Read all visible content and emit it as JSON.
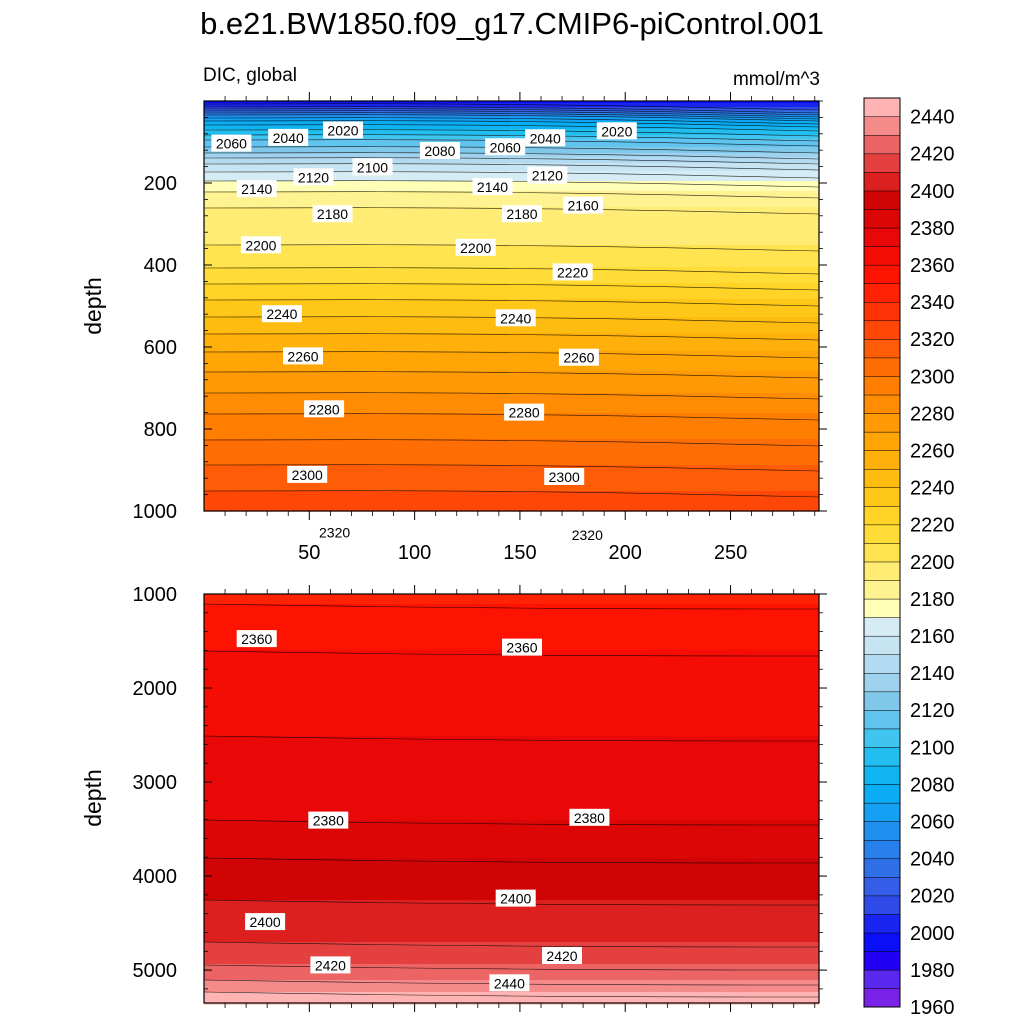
{
  "title": "b.e21.BW1850.f09_g17.CMIP6-piControl.001",
  "chart_data": {
    "type": "contour",
    "variable": "DIC, global",
    "units": "mmol/m^3",
    "xlim": [
      0,
      292
    ],
    "x_ticks": [
      50,
      100,
      150,
      200,
      250
    ],
    "x_tick_labels": [
      "50",
      "100",
      "150",
      "200",
      "250"
    ],
    "colorbar": {
      "levels": [
        1960,
        1970,
        1980,
        1990,
        2000,
        2010,
        2020,
        2030,
        2040,
        2050,
        2060,
        2070,
        2080,
        2090,
        2100,
        2110,
        2120,
        2130,
        2140,
        2150,
        2160,
        2170,
        2180,
        2190,
        2200,
        2210,
        2220,
        2230,
        2240,
        2250,
        2260,
        2270,
        2280,
        2290,
        2300,
        2310,
        2320,
        2330,
        2340,
        2350,
        2360,
        2370,
        2380,
        2390,
        2400,
        2410,
        2420,
        2430,
        2440,
        2450
      ],
      "labels": [
        "1960",
        "1980",
        "2000",
        "2020",
        "2040",
        "2060",
        "2080",
        "2100",
        "2120",
        "2140",
        "2160",
        "2180",
        "2200",
        "2220",
        "2240",
        "2260",
        "2280",
        "2300",
        "2320",
        "2340",
        "2360",
        "2380",
        "2400",
        "2420",
        "2440"
      ],
      "colors": [
        "#7b22e8",
        "#5a28ee",
        "#2200f5",
        "#0a0ff8",
        "#1a24f0",
        "#2e4be8",
        "#345de8",
        "#2f6fe8",
        "#2880ec",
        "#1f8ff0",
        "#14a0f4",
        "#0aacf4",
        "#10b4f2",
        "#22bef0",
        "#40c4f0",
        "#60c4ee",
        "#80c8ea",
        "#9ed2ee",
        "#b2daf0",
        "#c6e4f2",
        "#d6ecf4",
        "#ffffb8",
        "#fff290",
        "#ffec74",
        "#ffe450",
        "#ffdc38",
        "#ffd426",
        "#ffc818",
        "#ffbc10",
        "#ffb00a",
        "#ffa606",
        "#ff9a04",
        "#ff8c02",
        "#ff7e00",
        "#ff6e04",
        "#ff5c08",
        "#ff4808",
        "#ff3406",
        "#ff2204",
        "#fe1202",
        "#f50c04",
        "#e80808",
        "#dc0606",
        "#d00404",
        "#dc2020",
        "#e44040",
        "#ec6464",
        "#f48a8a",
        "#ffb4b4"
      ]
    },
    "panels": [
      {
        "name": "upper",
        "ylabel": "depth",
        "ylim": [
          0,
          1000
        ],
        "y_ticks": [
          200,
          400,
          600,
          800,
          1000
        ],
        "y_tick_labels": [
          "200",
          "400",
          "600",
          "800",
          "1000"
        ],
        "profile": [
          [
            0,
            1990
          ],
          [
            10,
            2005
          ],
          [
            20,
            2025
          ],
          [
            30,
            2045
          ],
          [
            40,
            2060
          ],
          [
            50,
            2072
          ],
          [
            60,
            2082
          ],
          [
            70,
            2090
          ],
          [
            80,
            2098
          ],
          [
            90,
            2106
          ],
          [
            100,
            2114
          ],
          [
            110,
            2120
          ],
          [
            120,
            2126
          ],
          [
            130,
            2134
          ],
          [
            140,
            2142
          ],
          [
            160,
            2154
          ],
          [
            180,
            2164
          ],
          [
            200,
            2172
          ],
          [
            220,
            2180
          ],
          [
            250,
            2188
          ],
          [
            280,
            2194
          ],
          [
            300,
            2196
          ],
          [
            330,
            2198
          ],
          [
            350,
            2200
          ],
          [
            370,
            2202
          ],
          [
            390,
            2206
          ],
          [
            430,
            2216
          ],
          [
            470,
            2226
          ],
          [
            500,
            2234
          ],
          [
            550,
            2246
          ],
          [
            600,
            2258
          ],
          [
            650,
            2268
          ],
          [
            700,
            2278
          ],
          [
            750,
            2288
          ],
          [
            800,
            2296
          ],
          [
            850,
            2304
          ],
          [
            900,
            2312
          ],
          [
            950,
            2320
          ],
          [
            1000,
            2327
          ]
        ],
        "contour_labels": [
          {
            "text": "2060",
            "x": 13,
            "d": 104
          },
          {
            "text": "2040",
            "x": 40,
            "d": 90
          },
          {
            "text": "2020",
            "x": 66,
            "d": 72
          },
          {
            "text": "2100",
            "x": 80,
            "d": 162
          },
          {
            "text": "2080",
            "x": 112,
            "d": 122
          },
          {
            "text": "2060",
            "x": 143,
            "d": 113
          },
          {
            "text": "2040",
            "x": 162,
            "d": 91
          },
          {
            "text": "2020",
            "x": 196,
            "d": 74
          },
          {
            "text": "2120",
            "x": 52,
            "d": 186
          },
          {
            "text": "2140",
            "x": 25,
            "d": 215
          },
          {
            "text": "2140",
            "x": 137,
            "d": 210
          },
          {
            "text": "2120",
            "x": 163,
            "d": 182
          },
          {
            "text": "2160",
            "x": 180,
            "d": 255
          },
          {
            "text": "2180",
            "x": 61,
            "d": 276
          },
          {
            "text": "2180",
            "x": 151,
            "d": 276
          },
          {
            "text": "2200",
            "x": 27,
            "d": 352
          },
          {
            "text": "2200",
            "x": 129,
            "d": 358
          },
          {
            "text": "2220",
            "x": 175,
            "d": 418
          },
          {
            "text": "2240",
            "x": 37,
            "d": 520
          },
          {
            "text": "2240",
            "x": 148,
            "d": 530
          },
          {
            "text": "2260",
            "x": 47,
            "d": 623
          },
          {
            "text": "2260",
            "x": 178,
            "d": 626
          },
          {
            "text": "2280",
            "x": 57,
            "d": 752
          },
          {
            "text": "2280",
            "x": 152,
            "d": 760
          },
          {
            "text": "2300",
            "x": 49,
            "d": 912
          },
          {
            "text": "2300",
            "x": 171,
            "d": 917
          },
          {
            "text": "2320",
            "x": 62,
            "d": 1053
          },
          {
            "text": "2320",
            "x": 182,
            "d": 1059
          }
        ]
      },
      {
        "name": "lower",
        "ylabel": "depth",
        "ylim": [
          1000,
          5350
        ],
        "y_ticks": [
          1000,
          2000,
          3000,
          4000,
          5000
        ],
        "y_tick_labels": [
          "1000",
          "2000",
          "3000",
          "4000",
          "5000"
        ],
        "profile": [
          [
            1000,
            2340
          ],
          [
            1100,
            2350
          ],
          [
            1300,
            2354
          ],
          [
            1600,
            2360
          ],
          [
            2000,
            2365
          ],
          [
            2500,
            2370
          ],
          [
            3000,
            2376
          ],
          [
            3400,
            2380
          ],
          [
            3800,
            2390
          ],
          [
            4100,
            2396
          ],
          [
            4400,
            2404
          ],
          [
            4700,
            2410
          ],
          [
            4900,
            2418
          ],
          [
            5050,
            2426
          ],
          [
            5150,
            2434
          ],
          [
            5250,
            2442
          ],
          [
            5350,
            2448
          ]
        ],
        "contour_labels": [
          {
            "text": "2360",
            "x": 25,
            "d": 1480
          },
          {
            "text": "2360",
            "x": 151,
            "d": 1570
          },
          {
            "text": "2380",
            "x": 59,
            "d": 3410
          },
          {
            "text": "2380",
            "x": 183,
            "d": 3380
          },
          {
            "text": "2400",
            "x": 29,
            "d": 4490
          },
          {
            "text": "2400",
            "x": 148,
            "d": 4240
          },
          {
            "text": "2420",
            "x": 60,
            "d": 4950
          },
          {
            "text": "2420",
            "x": 170,
            "d": 4850
          },
          {
            "text": "2440",
            "x": 145,
            "d": 5140
          }
        ]
      }
    ]
  }
}
